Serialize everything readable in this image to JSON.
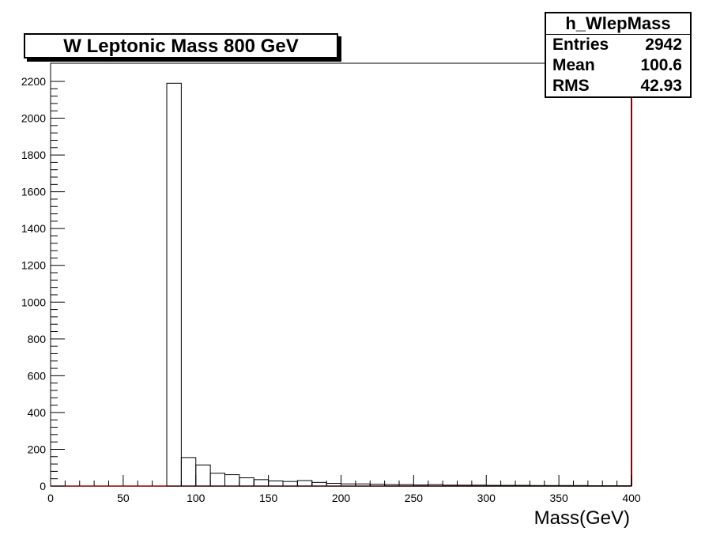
{
  "chart_data": {
    "type": "bar",
    "title": "W Leptonic Mass 800 GeV",
    "xlabel": "Mass(GeV)",
    "ylabel": "",
    "xlim": [
      0,
      400
    ],
    "ylim": [
      0,
      2300
    ],
    "xticks": [
      0,
      50,
      100,
      150,
      200,
      250,
      300,
      350,
      400
    ],
    "yticks": [
      0,
      200,
      400,
      600,
      800,
      1000,
      1200,
      1400,
      1600,
      1800,
      2000,
      2200
    ],
    "bin_width": 10,
    "bin_edges_start": [
      80,
      90,
      100,
      110,
      120,
      130,
      140,
      150,
      160,
      170,
      180,
      190,
      200,
      210,
      220,
      230,
      240,
      250,
      260,
      270,
      280,
      290,
      300,
      310,
      320,
      330,
      340,
      350,
      360,
      370,
      380,
      390
    ],
    "values": [
      2190,
      155,
      115,
      70,
      62,
      45,
      35,
      28,
      25,
      30,
      20,
      15,
      12,
      12,
      10,
      8,
      8,
      6,
      8,
      5,
      5,
      5,
      4,
      4,
      4,
      3,
      3,
      3,
      3,
      2,
      2,
      2
    ],
    "stats": {
      "name": "h_WlepMass",
      "rows": [
        {
          "label": "Entries",
          "value": "2942"
        },
        {
          "label": "Mean",
          "value": "100.6"
        },
        {
          "label": "RMS",
          "value": "42.93"
        }
      ]
    },
    "colors": {
      "histogram_line": "#000000",
      "axis_line": "#8b0000"
    }
  }
}
